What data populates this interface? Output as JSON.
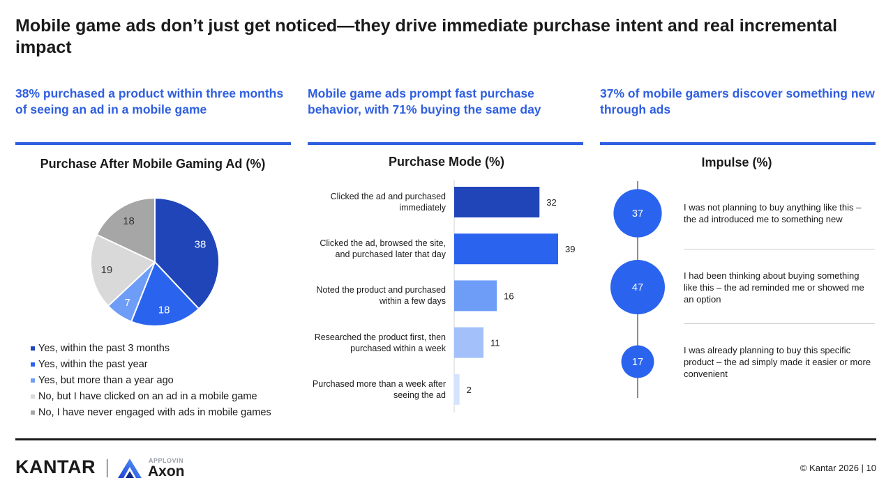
{
  "title": "Mobile game ads don’t just get noticed—they drive immediate purchase intent and real incremental impact",
  "columns": [
    {
      "heading": "38% purchased a product within three months of seeing an ad in a mobile game"
    },
    {
      "heading": "Mobile game ads prompt fast purchase behavior, with 71% buying the same day"
    },
    {
      "heading": "37% of mobile gamers discover something new through ads"
    }
  ],
  "chart_data": [
    {
      "type": "pie",
      "title": "Purchase After Mobile Gaming Ad (%)",
      "categories": [
        "Yes, within the past 3 months",
        "Yes, within the past year",
        "Yes, but more than a year ago",
        "No, but I have clicked on an ad in a mobile game",
        "No, I have never engaged with ads in mobile games"
      ],
      "values": [
        38,
        18,
        7,
        19,
        18
      ],
      "colors": [
        "#1f45b8",
        "#2a64ee",
        "#6e9df7",
        "#d9d9d9",
        "#a6a6a6"
      ],
      "legend": "bottom"
    },
    {
      "type": "bar",
      "orientation": "horizontal",
      "title": "Purchase Mode (%)",
      "categories": [
        "Clicked the ad and purchased immediately",
        "Clicked the ad, browsed the site, and purchased later that day",
        "Noted the product and purchased within a few days",
        "Researched the product first, then purchased within a week",
        "Purchased more than a week after seeing the ad"
      ],
      "values": [
        32,
        39,
        16,
        11,
        2
      ],
      "colors": [
        "#1f45b8",
        "#2a64ee",
        "#6e9df7",
        "#a3c0fa",
        "#d6e3fd"
      ],
      "xlim": [
        0,
        39
      ]
    },
    {
      "type": "bubble",
      "title": "Impulse (%)",
      "categories": [
        "I was not planning to buy anything like this – the ad introduced me to something new",
        "I had been thinking about buying something like this – the ad reminded me or showed me an option",
        "I was already planning to buy this specific product – the ad simply made it easier or more convenient"
      ],
      "values": [
        37,
        47,
        17
      ],
      "color": "#2a64ee"
    }
  ],
  "footer": {
    "brand": "KANTAR",
    "partner_small": "APPLOVIN",
    "partner_big": "Axon",
    "copyright": "© Kantar 2026 | 10"
  }
}
